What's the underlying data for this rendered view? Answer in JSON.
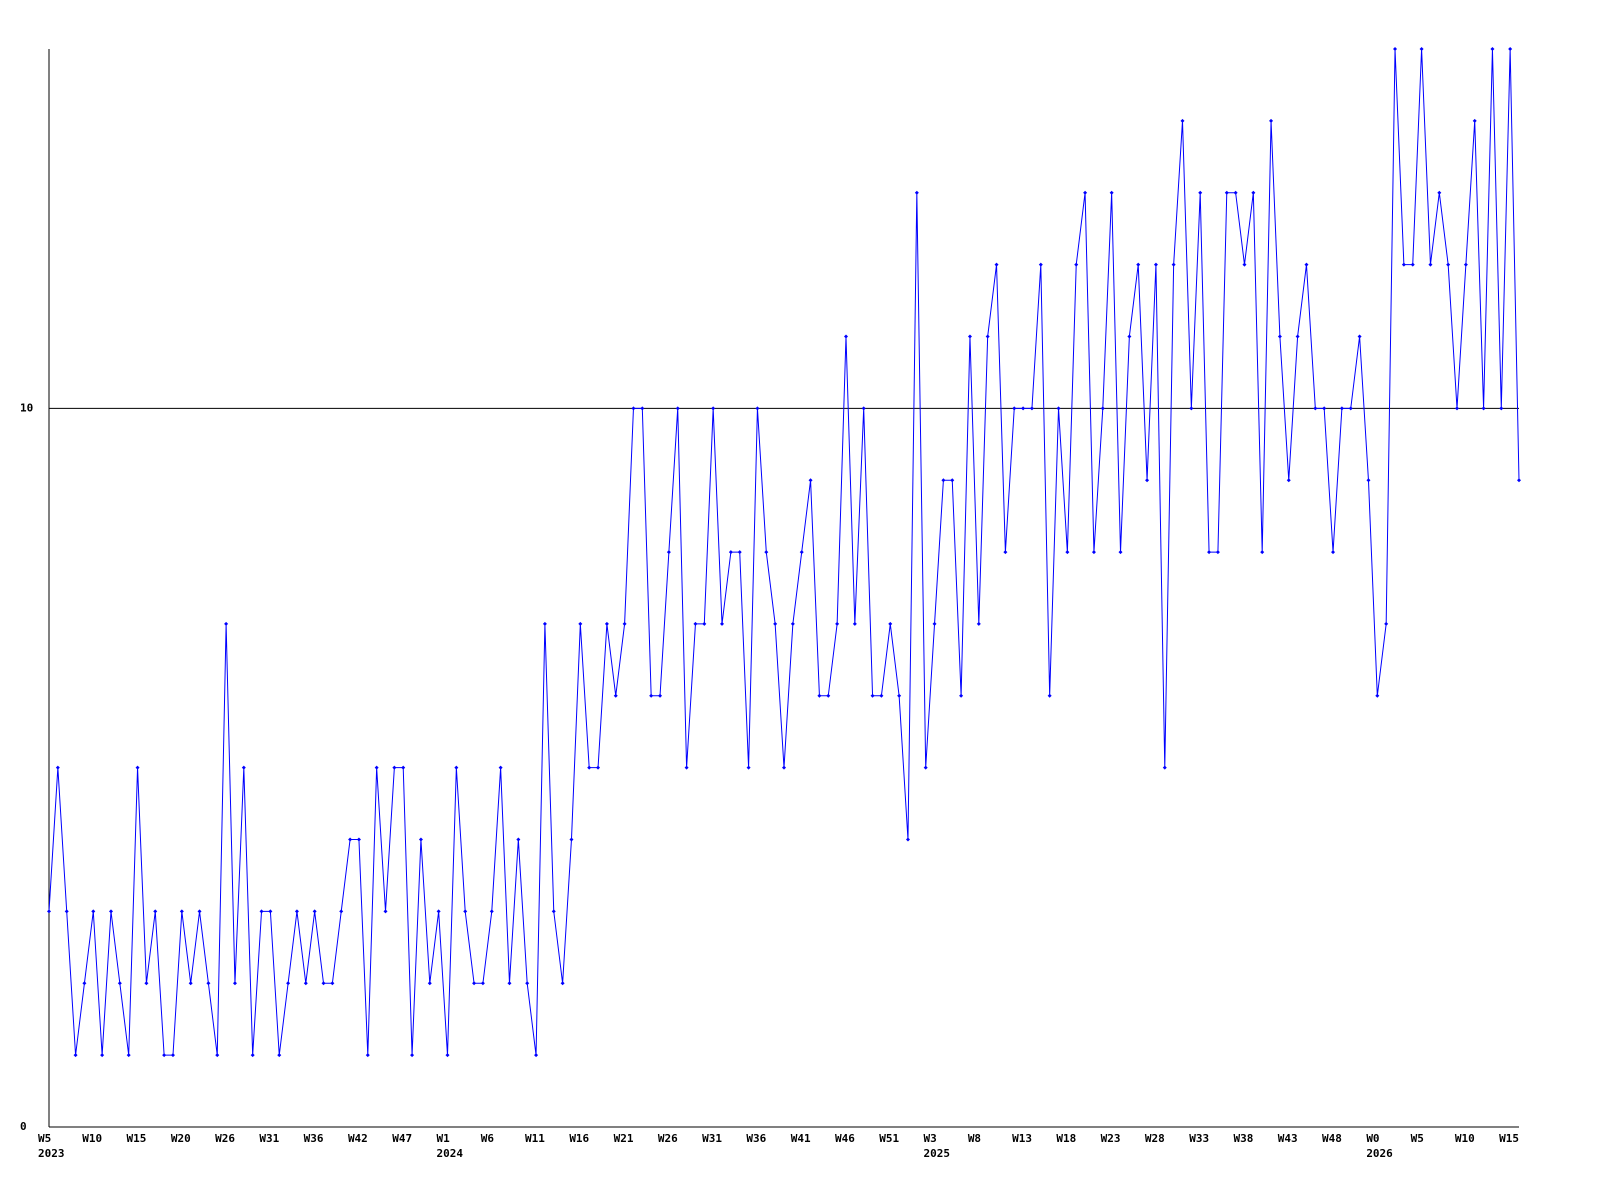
{
  "chart_data": {
    "type": "line",
    "categories": [
      "W5",
      null,
      null,
      null,
      null,
      "W10",
      null,
      null,
      null,
      null,
      "W15",
      null,
      null,
      null,
      null,
      "W20",
      null,
      null,
      null,
      null,
      "W26",
      null,
      null,
      null,
      null,
      "W31",
      null,
      null,
      null,
      null,
      "W36",
      null,
      null,
      null,
      null,
      "W42",
      null,
      null,
      null,
      null,
      "W47",
      null,
      null,
      null,
      null,
      "W1",
      null,
      null,
      null,
      null,
      "W6",
      null,
      null,
      null,
      null,
      "W11",
      null,
      null,
      null,
      null,
      "W16",
      null,
      null,
      null,
      null,
      "W21",
      null,
      null,
      null,
      null,
      "W26",
      null,
      null,
      null,
      null,
      "W31",
      null,
      null,
      null,
      null,
      "W36",
      null,
      null,
      null,
      null,
      "W41",
      null,
      null,
      null,
      null,
      "W46",
      null,
      null,
      null,
      null,
      "W51",
      null,
      null,
      null,
      null,
      "W3",
      null,
      null,
      null,
      null,
      "W8",
      null,
      null,
      null,
      null,
      "W13",
      null,
      null,
      null,
      null,
      "W18",
      null,
      null,
      null,
      null,
      "W23",
      null,
      null,
      null,
      null,
      "W28",
      null,
      null,
      null,
      null,
      "W33",
      null,
      null,
      null,
      null,
      "W38",
      null,
      null,
      null,
      null,
      "W43",
      null,
      null,
      null,
      null,
      "W48",
      null,
      null,
      null,
      null,
      "W0",
      null,
      null,
      null,
      null,
      "W5",
      null,
      null,
      null,
      null,
      "W10",
      null,
      null,
      null,
      null,
      "W15",
      null
    ],
    "years": [
      "2023",
      null,
      null,
      null,
      null,
      null,
      null,
      null,
      null,
      null,
      null,
      null,
      null,
      null,
      null,
      null,
      null,
      null,
      null,
      null,
      null,
      null,
      null,
      null,
      null,
      null,
      null,
      null,
      null,
      null,
      null,
      null,
      null,
      null,
      null,
      null,
      null,
      null,
      null,
      null,
      null,
      null,
      null,
      null,
      null,
      "2024",
      null,
      null,
      null,
      null,
      null,
      null,
      null,
      null,
      null,
      null,
      null,
      null,
      null,
      null,
      null,
      null,
      null,
      null,
      null,
      null,
      null,
      null,
      null,
      null,
      null,
      null,
      null,
      null,
      null,
      null,
      null,
      null,
      null,
      null,
      null,
      null,
      null,
      null,
      null,
      null,
      null,
      null,
      null,
      null,
      null,
      null,
      null,
      null,
      null,
      null,
      null,
      null,
      null,
      null,
      "2025",
      null,
      null,
      null,
      null,
      null,
      null,
      null,
      null,
      null,
      null,
      null,
      null,
      null,
      null,
      null,
      null,
      null,
      null,
      null,
      null,
      null,
      null,
      null,
      null,
      null,
      null,
      null,
      null,
      null,
      null,
      null,
      null,
      null,
      null,
      null,
      null,
      null,
      null,
      null,
      null,
      null,
      null,
      null,
      null,
      null,
      null,
      null,
      null,
      null,
      "2026",
      null,
      null,
      null,
      null,
      null,
      null,
      null,
      null,
      null,
      null,
      null,
      null,
      null,
      null,
      null,
      null
    ],
    "values": [
      3,
      5,
      3,
      1,
      2,
      3,
      1,
      3,
      2,
      1,
      5,
      2,
      3,
      1,
      1,
      3,
      2,
      3,
      2,
      1,
      7,
      2,
      5,
      1,
      3,
      3,
      1,
      2,
      3,
      2,
      3,
      2,
      2,
      3,
      4,
      4,
      1,
      5,
      3,
      5,
      5,
      1,
      4,
      2,
      3,
      1,
      5,
      3,
      2,
      2,
      3,
      5,
      2,
      4,
      2,
      1,
      7,
      3,
      2,
      4,
      7,
      5,
      5,
      7,
      6,
      7,
      10,
      10,
      6,
      6,
      8,
      10,
      5,
      7,
      7,
      10,
      7,
      8,
      8,
      5,
      10,
      8,
      7,
      5,
      7,
      8,
      9,
      6,
      6,
      7,
      11,
      7,
      10,
      6,
      6,
      7,
      6,
      4,
      13,
      5,
      7,
      9,
      9,
      6,
      11,
      7,
      11,
      12,
      8,
      10,
      10,
      10,
      12,
      6,
      10,
      8,
      12,
      13,
      8,
      10,
      13,
      8,
      11,
      12,
      9,
      12,
      5,
      12,
      14,
      10,
      13,
      8,
      8,
      13,
      13,
      12,
      13,
      8,
      14,
      11,
      9,
      11,
      12,
      10,
      10,
      8,
      10,
      10,
      11,
      9,
      6,
      7,
      15,
      12,
      12,
      15,
      12,
      13,
      12,
      10,
      12,
      14,
      10,
      15,
      10,
      15,
      9
    ],
    "color": "#0000ff",
    "ylim": [
      0,
      15
    ],
    "yticks": [
      0,
      10
    ],
    "grid": true
  }
}
